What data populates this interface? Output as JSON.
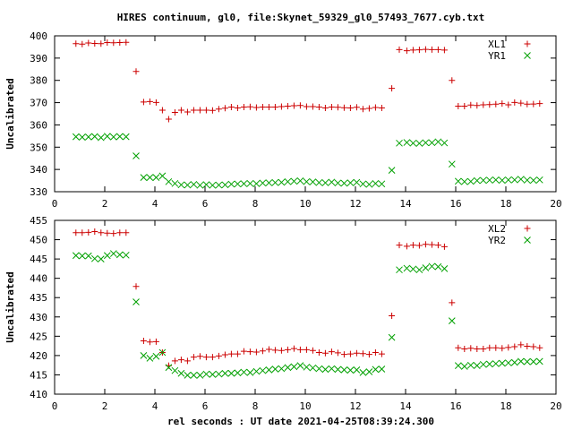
{
  "title": "HIRES continuum, gl0, file:Skynet_59329_gl0_57493_7677.cyb.txt",
  "xlabel": "rel seconds : UT date 2021-04-25T08:39:24.300",
  "chart_data": [
    {
      "type": "scatter",
      "ylabel": "Uncalibrated",
      "xlim": [
        0,
        20
      ],
      "ylim": [
        330,
        400
      ],
      "xticks": [
        0,
        2,
        4,
        6,
        8,
        10,
        12,
        14,
        16,
        18,
        20
      ],
      "yticks": [
        330,
        340,
        350,
        360,
        370,
        380,
        390,
        400
      ],
      "legend_position": "top-right",
      "grid": false,
      "x": [
        0.85,
        1.1,
        1.35,
        1.6,
        1.85,
        2.1,
        2.35,
        2.6,
        2.85,
        3.25,
        3.55,
        3.8,
        4.05,
        4.3,
        4.55,
        4.8,
        5.05,
        5.3,
        5.55,
        5.8,
        6.05,
        6.3,
        6.55,
        6.8,
        7.05,
        7.3,
        7.55,
        7.8,
        8.05,
        8.3,
        8.55,
        8.8,
        9.05,
        9.3,
        9.55,
        9.8,
        10.05,
        10.3,
        10.55,
        10.8,
        11.05,
        11.3,
        11.55,
        11.8,
        12.05,
        12.3,
        12.55,
        12.8,
        13.05,
        13.45,
        13.75,
        14.05,
        14.3,
        14.55,
        14.8,
        15.05,
        15.3,
        15.55,
        15.85,
        16.1,
        16.35,
        16.6,
        16.85,
        17.1,
        17.35,
        17.6,
        17.85,
        18.1,
        18.35,
        18.6,
        18.85,
        19.1,
        19.35
      ],
      "series": [
        {
          "name": "XL1",
          "color": "#cc0000",
          "marker": "plus",
          "values": [
            396.5,
            396.3,
            396.8,
            396.6,
            396.5,
            397.0,
            396.9,
            397.0,
            397.1,
            384.0,
            370.3,
            370.5,
            370.1,
            366.6,
            362.6,
            365.6,
            366.6,
            365.8,
            366.6,
            366.6,
            366.6,
            366.5,
            367.1,
            367.5,
            368.0,
            367.6,
            368.0,
            368.1,
            367.8,
            368.0,
            368.0,
            368.0,
            368.2,
            368.4,
            368.6,
            368.7,
            368.2,
            368.2,
            368.0,
            367.6,
            368.0,
            367.9,
            367.7,
            367.6,
            367.9,
            367.1,
            367.4,
            367.8,
            367.6,
            376.4,
            393.8,
            393.3,
            393.6,
            393.7,
            393.9,
            393.8,
            393.8,
            393.6,
            380.0,
            368.4,
            368.4,
            368.9,
            368.7,
            369.0,
            369.1,
            369.3,
            369.6,
            369.0,
            370.1,
            369.8,
            369.3,
            369.4,
            369.6
          ]
        },
        {
          "name": "YR1",
          "color": "#00a000",
          "marker": "x",
          "values": [
            354.7,
            354.5,
            354.6,
            354.8,
            354.3,
            354.9,
            354.6,
            354.8,
            354.7,
            346.1,
            336.4,
            336.4,
            336.4,
            337.1,
            334.5,
            333.7,
            333.1,
            333.0,
            333.3,
            332.9,
            333.2,
            332.9,
            333.0,
            333.1,
            333.4,
            333.5,
            333.6,
            333.7,
            333.6,
            333.9,
            334.0,
            334.1,
            334.2,
            334.5,
            334.7,
            334.9,
            334.5,
            334.4,
            334.1,
            334.0,
            334.3,
            333.9,
            333.8,
            334.0,
            334.2,
            333.5,
            333.3,
            333.7,
            333.5,
            339.6,
            351.8,
            352.1,
            351.8,
            351.7,
            352.0,
            352.0,
            352.4,
            351.9,
            342.4,
            334.7,
            334.5,
            334.6,
            335.0,
            335.1,
            335.2,
            335.3,
            335.1,
            335.3,
            335.3,
            335.6,
            335.2,
            335.1,
            335.3
          ]
        }
      ]
    },
    {
      "type": "scatter",
      "ylabel": "Uncalibrated",
      "xlim": [
        0,
        20
      ],
      "ylim": [
        410,
        455
      ],
      "xticks": [
        0,
        2,
        4,
        6,
        8,
        10,
        12,
        14,
        16,
        18,
        20
      ],
      "yticks": [
        410,
        415,
        420,
        425,
        430,
        435,
        440,
        445,
        450,
        455
      ],
      "legend_position": "top-right",
      "grid": false,
      "x": [
        0.85,
        1.1,
        1.35,
        1.6,
        1.85,
        2.1,
        2.35,
        2.6,
        2.85,
        3.25,
        3.55,
        3.8,
        4.05,
        4.3,
        4.55,
        4.8,
        5.05,
        5.3,
        5.55,
        5.8,
        6.05,
        6.3,
        6.55,
        6.8,
        7.05,
        7.3,
        7.55,
        7.8,
        8.05,
        8.3,
        8.55,
        8.8,
        9.05,
        9.3,
        9.55,
        9.8,
        10.05,
        10.3,
        10.55,
        10.8,
        11.05,
        11.3,
        11.55,
        11.8,
        12.05,
        12.3,
        12.55,
        12.8,
        13.05,
        13.45,
        13.75,
        14.05,
        14.3,
        14.55,
        14.8,
        15.05,
        15.3,
        15.55,
        15.85,
        16.1,
        16.35,
        16.6,
        16.85,
        17.1,
        17.35,
        17.6,
        17.85,
        18.1,
        18.35,
        18.6,
        18.85,
        19.1,
        19.35
      ],
      "series": [
        {
          "name": "XL2",
          "color": "#cc0000",
          "marker": "plus",
          "values": [
            451.8,
            451.8,
            451.9,
            452.1,
            451.8,
            451.7,
            451.6,
            451.8,
            451.8,
            437.9,
            423.8,
            423.5,
            423.6,
            420.8,
            417.4,
            418.6,
            418.9,
            418.6,
            419.6,
            419.8,
            419.6,
            419.6,
            419.9,
            420.2,
            420.4,
            420.4,
            421.1,
            421.0,
            420.9,
            421.2,
            421.6,
            421.4,
            421.3,
            421.5,
            421.8,
            421.5,
            421.5,
            421.3,
            420.8,
            420.6,
            421.0,
            420.7,
            420.3,
            420.4,
            420.6,
            420.5,
            420.3,
            420.8,
            420.4,
            430.3,
            448.6,
            448.3,
            448.6,
            448.5,
            448.8,
            448.7,
            448.6,
            448.2,
            433.7,
            422.0,
            421.7,
            421.9,
            421.7,
            421.7,
            422.0,
            422.0,
            421.9,
            422.1,
            422.3,
            422.8,
            422.4,
            422.3,
            422.0
          ]
        },
        {
          "name": "YR2",
          "color": "#00a000",
          "marker": "x",
          "values": [
            445.9,
            445.8,
            445.8,
            445.1,
            445.0,
            445.9,
            446.4,
            446.1,
            446.0,
            433.9,
            420.0,
            419.3,
            419.8,
            420.8,
            416.9,
            416.1,
            415.4,
            414.9,
            414.9,
            414.9,
            415.2,
            415.1,
            415.2,
            415.4,
            415.4,
            415.5,
            415.7,
            415.6,
            415.9,
            416.1,
            416.3,
            416.5,
            416.6,
            416.9,
            417.1,
            417.4,
            417.0,
            416.8,
            416.6,
            416.4,
            416.6,
            416.4,
            416.3,
            416.2,
            416.3,
            415.6,
            415.8,
            416.4,
            416.5,
            424.7,
            442.2,
            442.6,
            442.4,
            442.2,
            442.7,
            443.1,
            443.0,
            442.5,
            429.0,
            417.4,
            417.2,
            417.5,
            417.4,
            417.7,
            417.8,
            417.9,
            418.0,
            418.1,
            418.2,
            418.5,
            418.4,
            418.4,
            418.5
          ]
        }
      ]
    }
  ]
}
